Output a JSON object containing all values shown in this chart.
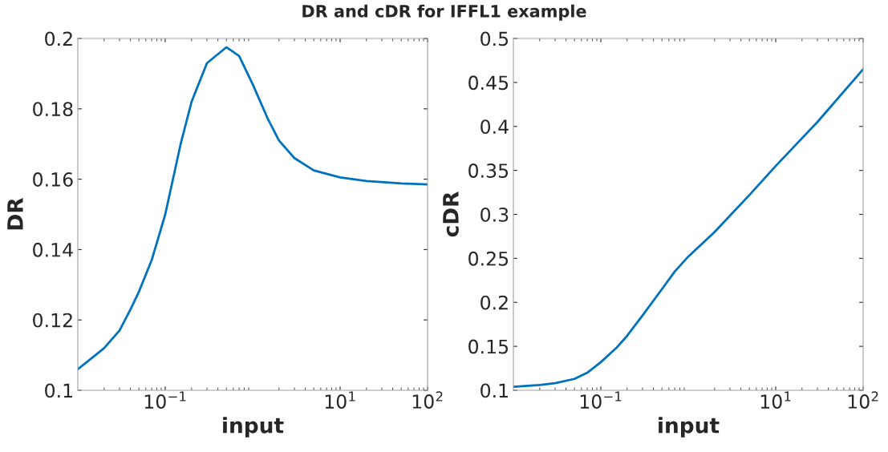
{
  "chart_data": [
    {
      "type": "line",
      "title": "DR and cDR for IFFL1 example",
      "xlabel": "input",
      "ylabel": "DR",
      "log": "x",
      "grid": false,
      "legend": false,
      "marker": "none",
      "line_style": "solid",
      "xlim": [
        0.01,
        100
      ],
      "xticks": [
        {
          "value": 0.1,
          "label": "10$^{−1}$"
        },
        {
          "value": 10,
          "label": "10$^{1}$"
        },
        {
          "value": 100,
          "label": "10$^{2}$"
        }
      ],
      "ylim": [
        0.1,
        0.2
      ],
      "yticks": [
        0.1,
        0.12,
        0.14,
        0.16,
        0.18,
        0.2
      ],
      "series": [
        {
          "color": "#0072bd",
          "x": [
            0.01,
            0.02,
            0.03,
            0.04,
            0.05,
            0.07,
            0.1,
            0.15,
            0.2,
            0.3,
            0.5,
            0.7,
            1,
            1.5,
            2,
            3,
            5,
            10,
            20,
            50,
            100
          ],
          "values": [
            0.106,
            0.112,
            0.117,
            0.123,
            0.128,
            0.137,
            0.15,
            0.17,
            0.182,
            0.193,
            0.1975,
            0.195,
            0.187,
            0.177,
            0.171,
            0.166,
            0.1625,
            0.1605,
            0.1595,
            0.1588,
            0.1585
          ]
        }
      ]
    },
    {
      "type": "line",
      "xlabel": "input",
      "ylabel": "cDR",
      "log": "x",
      "grid": false,
      "legend": false,
      "marker": "none",
      "line_style": "solid",
      "xlim": [
        0.01,
        100
      ],
      "xticks": [
        {
          "value": 0.1,
          "label": "10$^{−1}$"
        },
        {
          "value": 10,
          "label": "10$^{1}$"
        },
        {
          "value": 100,
          "label": "10$^{2}$"
        }
      ],
      "ylim": [
        0.1,
        0.5
      ],
      "yticks": [
        0.1,
        0.15,
        0.2,
        0.25,
        0.3,
        0.35,
        0.4,
        0.45,
        0.5
      ],
      "series": [
        {
          "color": "#0072bd",
          "x": [
            0.01,
            0.02,
            0.03,
            0.05,
            0.07,
            0.1,
            0.15,
            0.2,
            0.3,
            0.5,
            0.7,
            1,
            2,
            5,
            10,
            30,
            100
          ],
          "values": [
            0.104,
            0.106,
            0.108,
            0.113,
            0.12,
            0.132,
            0.148,
            0.162,
            0.185,
            0.215,
            0.235,
            0.252,
            0.28,
            0.322,
            0.355,
            0.405,
            0.465
          ]
        }
      ]
    }
  ]
}
